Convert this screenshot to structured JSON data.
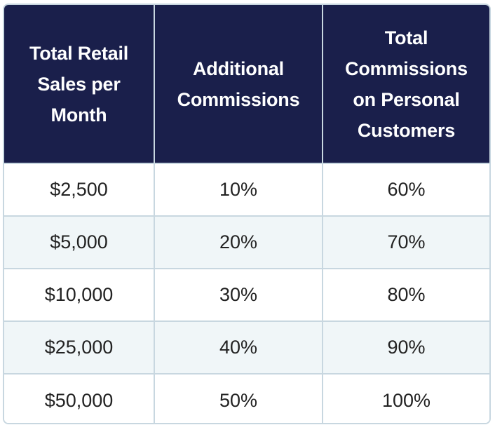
{
  "table": {
    "headers": [
      "Total Retail Sales per Month",
      "Additional Commissions",
      "Total Commissions on Personal Customers"
    ],
    "rows": [
      [
        "$2,500",
        "10%",
        "60%"
      ],
      [
        "$5,000",
        "20%",
        "70%"
      ],
      [
        "$10,000",
        "30%",
        "80%"
      ],
      [
        "$25,000",
        "40%",
        "90%"
      ],
      [
        "$50,000",
        "50%",
        "100%"
      ]
    ]
  },
  "colors": {
    "header_bg": "#1a1f4b",
    "header_text": "#ffffff",
    "stripe_bg": "#f0f6f8",
    "border": "#c8d7e0"
  }
}
